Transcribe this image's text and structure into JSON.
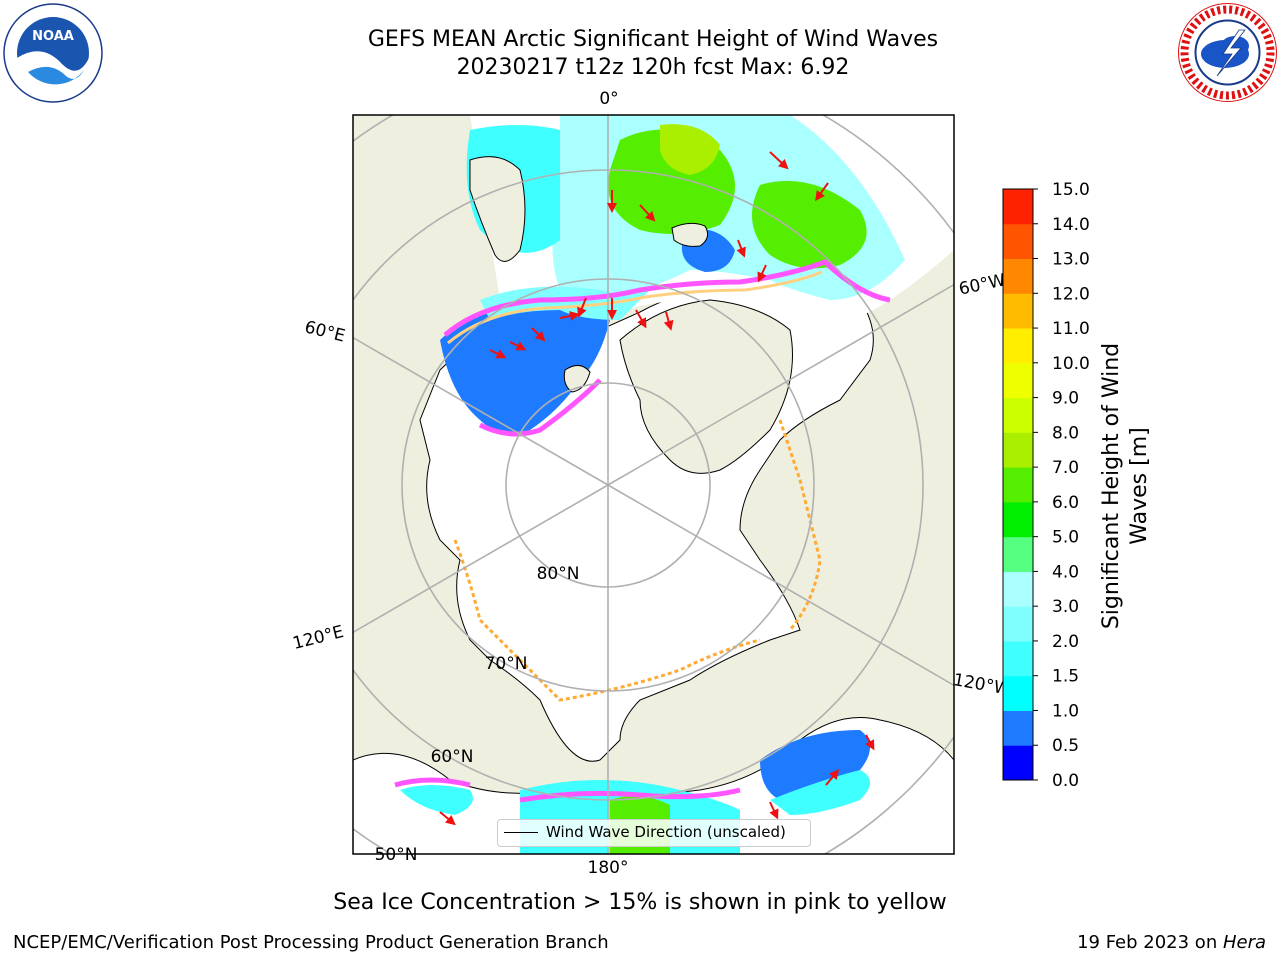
{
  "header": {
    "title_line1": "GEFS MEAN Arctic Significant Height of Wind Waves",
    "title_line2": "20230217 t12z 120h fcst   Max: 6.92"
  },
  "logos": {
    "noaa_text": "NOAA",
    "noaa_ring": "NATIONAL OCEANIC AND ATMOSPHERIC ADMINISTRATION · U.S. DEPARTMENT OF COMMERCE",
    "nws_ring": "NATIONAL WEATHER SERVICE"
  },
  "map": {
    "projection": "north polar stereographic",
    "meridian_labels": {
      "m0": "0°",
      "m60e": "60°E",
      "m120e": "120°E",
      "m180": "180°",
      "m60w": "60°W",
      "m120w": "120°W"
    },
    "parallel_labels": {
      "p80": "80°N",
      "p70": "70°N",
      "p60": "60°N",
      "p50": "50°N"
    },
    "colors": {
      "land": "#efefdf",
      "ocean_no_data": "#ffffff",
      "graticule": "#b0b0b0",
      "arrow": "#ee1111",
      "coastline": "#000000"
    }
  },
  "legend": {
    "label": "Wind Wave Direction (unscaled)"
  },
  "colorbar": {
    "title": "Significant Height of Wind Waves [m]",
    "ticks": [
      "0.0",
      "0.5",
      "1.0",
      "1.5",
      "2.0",
      "3.0",
      "4.0",
      "5.0",
      "6.0",
      "7.0",
      "8.0",
      "9.0",
      "10.0",
      "11.0",
      "12.0",
      "13.0",
      "14.0",
      "15.0"
    ],
    "colors": [
      "#0000ff",
      "#1e7bff",
      "#00ffff",
      "#40ffff",
      "#80ffff",
      "#aaffff",
      "#55ff80",
      "#00ee00",
      "#55ee00",
      "#aaee00",
      "#ccff00",
      "#eeff00",
      "#ffee00",
      "#ffbb00",
      "#ff8800",
      "#ff5500",
      "#ff2200"
    ]
  },
  "footer": {
    "ice_note": "Sea Ice Concentration > 15% is shown in pink to yellow",
    "left": "NCEP/EMC/Verification Post Processing Product Generation Branch",
    "date": "19 Feb 2023 on ",
    "machine": "Hera"
  }
}
